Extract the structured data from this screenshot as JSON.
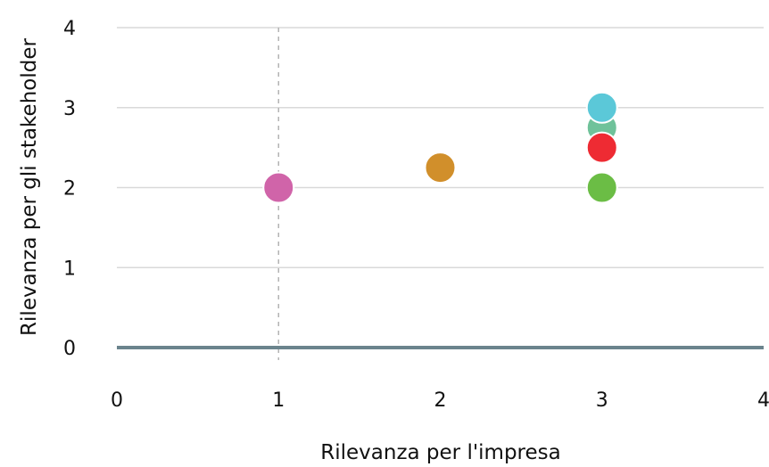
{
  "chart_data": {
    "type": "scatter",
    "title": "",
    "xlabel": "Rilevanza per l'impresa",
    "ylabel": "Rilevanza per gli stakeholder",
    "xlim": [
      0,
      4
    ],
    "ylim": [
      0,
      4
    ],
    "x_ticks": [
      "0",
      "1",
      "2",
      "3",
      "4"
    ],
    "y_ticks": [
      "0",
      "1",
      "2",
      "3",
      "4"
    ],
    "grid": "horizontal",
    "reference_line_x": 1,
    "points": [
      {
        "x": 1,
        "y": 2,
        "color": "#d064a9"
      },
      {
        "x": 2,
        "y": 2.25,
        "color": "#d18f2b"
      },
      {
        "x": 3,
        "y": 2.75,
        "color": "#6fc29a"
      },
      {
        "x": 3,
        "y": 3,
        "color": "#5bc8d8"
      },
      {
        "x": 3,
        "y": 2.5,
        "color": "#ee2b33"
      },
      {
        "x": 3,
        "y": 2,
        "color": "#6bbd45"
      }
    ]
  }
}
